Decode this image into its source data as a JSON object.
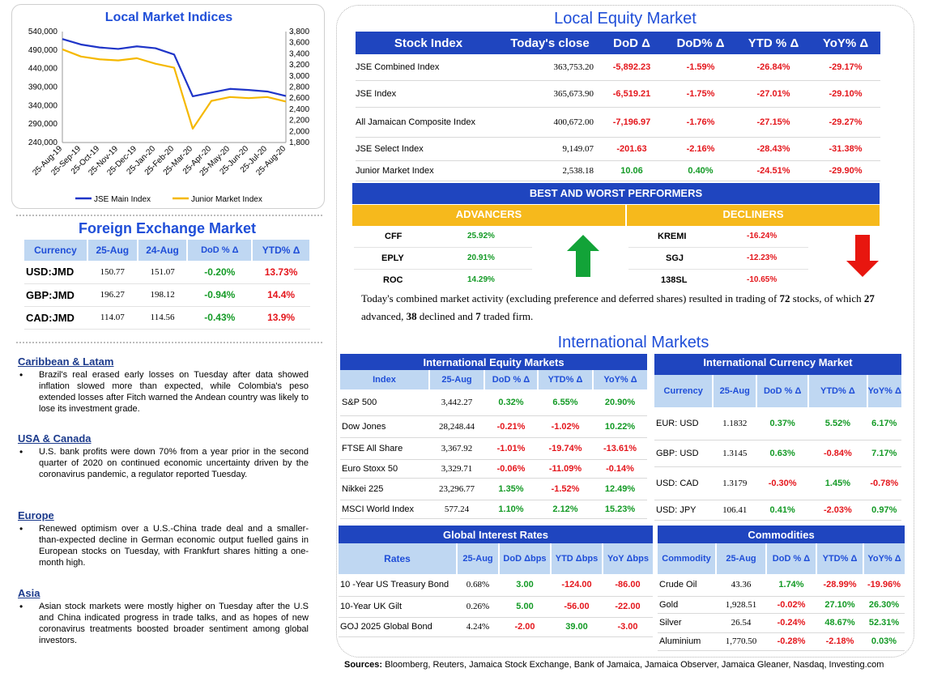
{
  "chart": {
    "title": "Local Market Indices",
    "left_ticks": [
      "540,000",
      "490,000",
      "440,000",
      "390,000",
      "340,000",
      "290,000",
      "240,000"
    ],
    "right_ticks": [
      "3,800",
      "3,600",
      "3,400",
      "3,200",
      "3,000",
      "2,800",
      "2,600",
      "2,400",
      "2,200",
      "2,000",
      "1,800"
    ],
    "x_ticks": [
      "25-Aug-19",
      "25-Sep-19",
      "25-Oct-19",
      "25-Nov-19",
      "25-Dec-19",
      "25-Jan-20",
      "25-Feb-20",
      "25-Mar-20",
      "25-Apr-20",
      "25-May-20",
      "25-Jun-20",
      "25-Jul-20",
      "25-Aug-20"
    ],
    "legend": [
      "JSE Main Index",
      "Junior Market Index"
    ],
    "colors": {
      "main": "#1f35c8",
      "junior": "#f5b800"
    }
  },
  "chart_data": {
    "type": "line",
    "title": "Local Market Indices",
    "x": [
      "25-Aug-19",
      "25-Sep-19",
      "25-Oct-19",
      "25-Nov-19",
      "25-Dec-19",
      "25-Jan-20",
      "25-Feb-20",
      "25-Mar-20",
      "25-Apr-20",
      "25-May-20",
      "25-Jun-20",
      "25-Jul-20",
      "25-Aug-20"
    ],
    "series": [
      {
        "name": "JSE Main Index",
        "axis": "left",
        "values": [
          520000,
          505000,
          497000,
          493000,
          500000,
          495000,
          478000,
          365000,
          375000,
          385000,
          382000,
          378000,
          365674
        ]
      },
      {
        "name": "Junior Market Index",
        "axis": "right",
        "values": [
          3480,
          3350,
          3300,
          3280,
          3320,
          3220,
          3150,
          2050,
          2550,
          2620,
          2600,
          2620,
          2538
        ]
      }
    ],
    "ylim_left": [
      240000,
      540000
    ],
    "ylim_right": [
      1800,
      3800
    ],
    "legend": "bottom"
  },
  "forex": {
    "title": "Foreign Exchange Market",
    "headers": [
      "Currency",
      "25-Aug",
      "24-Aug",
      "DoD % Δ",
      "YTD% Δ"
    ],
    "rows": [
      {
        "cur": "USD:JMD",
        "d1": "150.77",
        "d2": "151.07",
        "dod": "-0.20%",
        "ytd": "13.73%"
      },
      {
        "cur": "GBP:JMD",
        "d1": "196.27",
        "d2": "198.12",
        "dod": "-0.94%",
        "ytd": "14.4%"
      },
      {
        "cur": "CAD:JMD",
        "d1": "114.07",
        "d2": "114.56",
        "dod": "-0.43%",
        "ytd": "13.9%"
      }
    ]
  },
  "news": [
    {
      "region": "Caribbean & Latam",
      "text": "Brazil's real erased early losses on Tuesday after data showed inflation slowed more than expected, while Colombia's peso extended losses after Fitch warned the Andean country was likely to lose its investment grade."
    },
    {
      "region": "USA & Canada",
      "text": "U.S. bank profits were down 70% from a year prior in the second quarter of 2020 on continued economic uncertainty driven by the coronavirus pandemic, a regulator reported Tuesday."
    },
    {
      "region": "Europe",
      "text": "Renewed optimism over a U.S.-China trade deal and a smaller-than-expected decline in German economic output fuelled gains in European stocks on Tuesday, with Frankfurt shares hitting a one-month high."
    },
    {
      "region": "Asia",
      "text": "Asian stock markets were mostly higher on Tuesday after the U.S and China indicated progress in trade talks, and as hopes of new coronavirus treatments boosted broader sentiment among global investors."
    }
  ],
  "equity": {
    "title": "Local Equity Market",
    "headers": [
      "Stock Index",
      "Today's close",
      "DoD  Δ",
      "DoD% Δ",
      "YTD % Δ",
      "YoY% Δ"
    ],
    "rows": [
      {
        "name": "JSE Combined Index",
        "close": "363,753.20",
        "dod": "-5,892.23",
        "dodp": "-1.59%",
        "ytd": "-26.84%",
        "yoy": "-29.17%"
      },
      {
        "name": "JSE Index",
        "close": "365,673.90",
        "dod": "-6,519.21",
        "dodp": "-1.75%",
        "ytd": "-27.01%",
        "yoy": "-29.10%"
      },
      {
        "name": "All Jamaican Composite Index",
        "close": "400,672.00",
        "dod": "-7,196.97",
        "dodp": "-1.76%",
        "ytd": "-27.15%",
        "yoy": "-29.27%"
      },
      {
        "name": "JSE Select Index",
        "close": "9,149.07",
        "dod": "-201.63",
        "dodp": "-2.16%",
        "ytd": "-28.43%",
        "yoy": "-31.38%"
      },
      {
        "name": "Junior Market Index",
        "close": "2,538.18",
        "dod": "10.06",
        "dodp": "0.40%",
        "ytd": "-24.51%",
        "yoy": "-29.90%"
      }
    ]
  },
  "performers": {
    "title": "BEST AND WORST PERFORMERS",
    "adv_label": "ADVANCERS",
    "dec_label": "DECLINERS",
    "advancers": [
      {
        "sym": "CFF",
        "pct": "25.92%"
      },
      {
        "sym": "EPLY",
        "pct": "20.91%"
      },
      {
        "sym": "ROC",
        "pct": "14.29%"
      }
    ],
    "decliners": [
      {
        "sym": "KREMI",
        "pct": "-16.24%"
      },
      {
        "sym": "SGJ",
        "pct": "-12.23%"
      },
      {
        "sym": "138SL",
        "pct": "-10.65%"
      }
    ]
  },
  "summary": {
    "p1": "Today's combined market activity (excluding preference and deferred shares) resulted in trading of ",
    "total": "72",
    "p2": " stocks, of which ",
    "adv": "27",
    "p3": " advanced, ",
    "dec": "38",
    "p4": " declined and ",
    "firm": "7",
    "p5": " traded firm."
  },
  "intl": {
    "title": "International Markets",
    "equity": {
      "title": "International Equity Markets",
      "headers": [
        "Index",
        "25-Aug",
        "DoD % Δ",
        "YTD% Δ",
        "YoY% Δ"
      ],
      "rows": [
        {
          "name": "S&P 500",
          "v": "3,442.27",
          "dod": "0.32%",
          "ytd": "6.55%",
          "yoy": "20.90%"
        },
        {
          "name": "Dow Jones",
          "v": "28,248.44",
          "dod": "-0.21%",
          "ytd": "-1.02%",
          "yoy": "10.22%"
        },
        {
          "name": "FTSE All Share",
          "v": "3,367.92",
          "dod": "-1.01%",
          "ytd": "-19.74%",
          "yoy": "-13.61%"
        },
        {
          "name": "Euro Stoxx 50",
          "v": "3,329.71",
          "dod": "-0.06%",
          "ytd": "-11.09%",
          "yoy": "-0.14%"
        },
        {
          "name": "Nikkei 225",
          "v": "23,296.77",
          "dod": "1.35%",
          "ytd": "-1.52%",
          "yoy": "12.49%"
        },
        {
          "name": "MSCI World Index",
          "v": "577.24",
          "dod": "1.10%",
          "ytd": "2.12%",
          "yoy": "15.23%"
        }
      ]
    },
    "currency": {
      "title": "International Currency Market",
      "headers": [
        "Currency",
        "25-Aug",
        "DoD % Δ",
        "YTD% Δ",
        "YoY% Δ"
      ],
      "rows": [
        {
          "name": "EUR: USD",
          "v": "1.1832",
          "dod": "0.37%",
          "ytd": "5.52%",
          "yoy": "6.17%"
        },
        {
          "name": "GBP: USD",
          "v": "1.3145",
          "dod": "0.63%",
          "ytd": "-0.84%",
          "yoy": "7.17%"
        },
        {
          "name": "USD: CAD",
          "v": "1.3179",
          "dod": "-0.30%",
          "ytd": "1.45%",
          "yoy": "-0.78%"
        },
        {
          "name": "USD: JPY",
          "v": "106.41",
          "dod": "0.41%",
          "ytd": "-2.03%",
          "yoy": "0.97%"
        }
      ]
    },
    "rates": {
      "title": "Global Interest Rates",
      "headers": [
        "Rates",
        "25-Aug",
        "DoD Δbps",
        "YTD Δbps",
        "YoY Δbps"
      ],
      "rows": [
        {
          "name": "10 -Year US Treasury Bond",
          "v": "0.68%",
          "dod": "3.00",
          "ytd": "-124.00",
          "yoy": "-86.00"
        },
        {
          "name": "10-Year UK Gilt",
          "v": "0.26%",
          "dod": "5.00",
          "ytd": "-56.00",
          "yoy": "-22.00"
        },
        {
          "name": "GOJ 2025 Global Bond",
          "v": "4.24%",
          "dod": "-2.00",
          "ytd": "39.00",
          "yoy": "-3.00"
        }
      ]
    },
    "commodities": {
      "title": "Commodities",
      "headers": [
        "Commodity",
        "25-Aug",
        "DoD % Δ",
        "YTD% Δ",
        "YoY% Δ"
      ],
      "rows": [
        {
          "name": "Crude Oil",
          "v": "43.36",
          "dod": "1.74%",
          "ytd": "-28.99%",
          "yoy": "-19.96%"
        },
        {
          "name": "Gold",
          "v": "1,928.51",
          "dod": "-0.02%",
          "ytd": "27.10%",
          "yoy": "26.30%"
        },
        {
          "name": "Silver",
          "v": "26.54",
          "dod": "-0.24%",
          "ytd": "48.67%",
          "yoy": "52.31%"
        },
        {
          "name": "Aluminium",
          "v": "1,770.50",
          "dod": "-0.28%",
          "ytd": "-2.18%",
          "yoy": "0.03%"
        }
      ]
    }
  },
  "sources": {
    "label": "Sources:",
    "text": " Bloomberg, Reuters, Jamaica Stock Exchange, Bank of Jamaica, Jamaica Observer, Jamaica Gleaner, Nasdaq, Investing.com"
  }
}
